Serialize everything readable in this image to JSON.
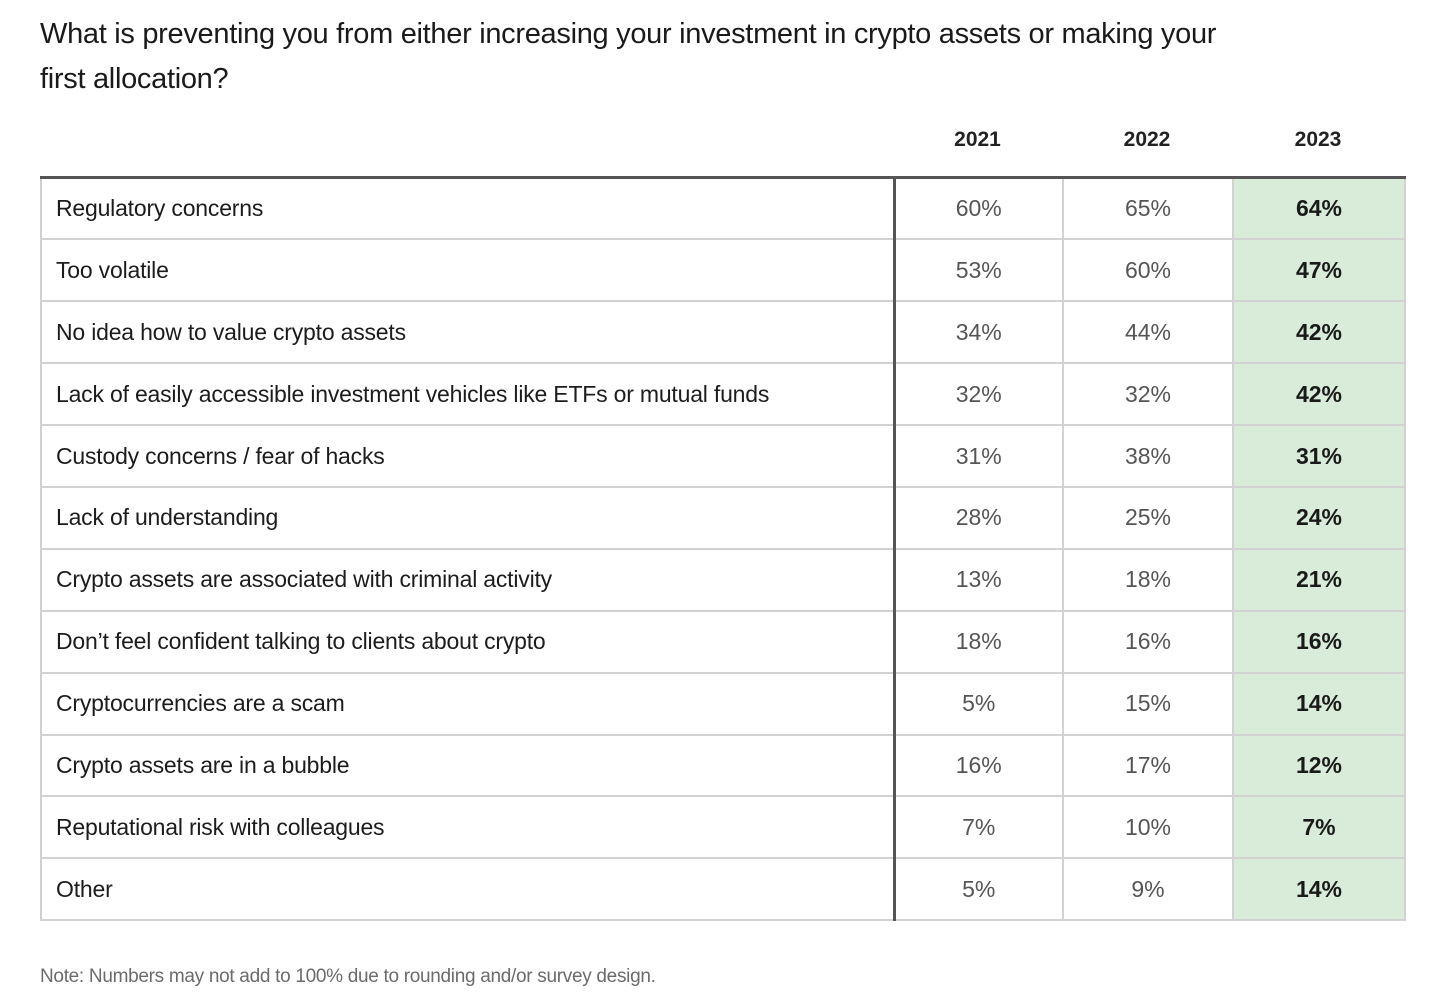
{
  "chart_data": {
    "type": "table",
    "title": "What is preventing you from either increasing your investment in crypto assets or making your first allocation?",
    "columns": [
      "2021",
      "2022",
      "2023"
    ],
    "highlight_column": "2023",
    "highlight_color": "#d8ecd9",
    "rows": [
      {
        "label": "Regulatory concerns",
        "values": [
          "60%",
          "65%",
          "64%"
        ]
      },
      {
        "label": "Too volatile",
        "values": [
          "53%",
          "60%",
          "47%"
        ]
      },
      {
        "label": "No idea how to value crypto assets",
        "values": [
          "34%",
          "44%",
          "42%"
        ]
      },
      {
        "label": "Lack of easily accessible investment vehicles like ETFs or mutual funds",
        "values": [
          "32%",
          "32%",
          "42%"
        ]
      },
      {
        "label": "Custody concerns / fear of hacks",
        "values": [
          "31%",
          "38%",
          "31%"
        ]
      },
      {
        "label": "Lack of understanding",
        "values": [
          "28%",
          "25%",
          "24%"
        ]
      },
      {
        "label": "Crypto assets are associated with criminal activity",
        "values": [
          "13%",
          "18%",
          "21%"
        ]
      },
      {
        "label": "Don’t feel confident talking to clients about crypto",
        "values": [
          "18%",
          "16%",
          "16%"
        ]
      },
      {
        "label": "Cryptocurrencies are a scam",
        "values": [
          "5%",
          "15%",
          "14%"
        ]
      },
      {
        "label": "Crypto assets are in a bubble",
        "values": [
          "16%",
          "17%",
          "12%"
        ]
      },
      {
        "label": "Reputational risk with colleagues",
        "values": [
          "7%",
          "10%",
          "7%"
        ]
      },
      {
        "label": "Other",
        "values": [
          "5%",
          "9%",
          "14%"
        ]
      }
    ],
    "note": "Note: Numbers may not add to 100% due to rounding and/or survey design."
  }
}
